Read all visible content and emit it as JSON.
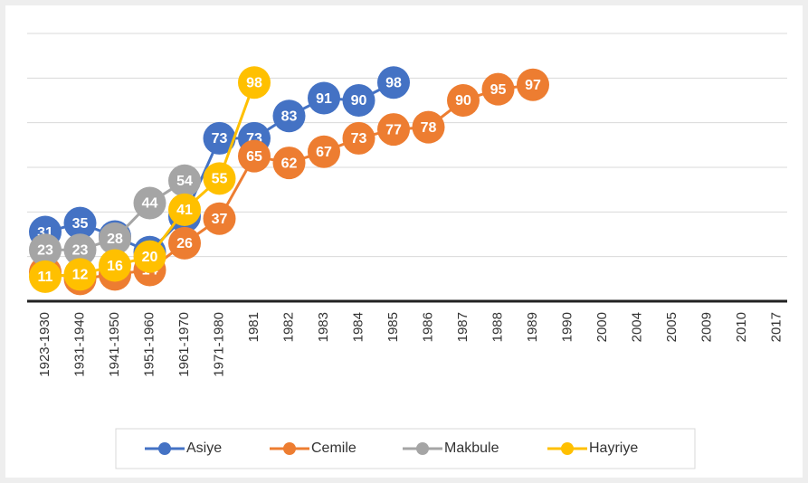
{
  "chart_data": {
    "type": "line",
    "categories": [
      "1923-1930",
      "1931-1940",
      "1941-1950",
      "1951-1960",
      "1961-1970",
      "1971-1980",
      "1981",
      "1982",
      "1983",
      "1984",
      "1985",
      "1986",
      "1987",
      "1988",
      "1989",
      "1990",
      "2000",
      "2004",
      "2005",
      "2009",
      "2010",
      "2017"
    ],
    "series": [
      {
        "name": "Asiye",
        "color": "#4472c4",
        "values": [
          31,
          35,
          29,
          22,
          38,
          73,
          73,
          83,
          91,
          90,
          98,
          null,
          null,
          null,
          null,
          null,
          null,
          null,
          null,
          null,
          null,
          null
        ]
      },
      {
        "name": "Cemile",
        "color": "#ed7d31",
        "values": [
          13,
          10,
          12,
          14,
          26,
          37,
          65,
          62,
          67,
          73,
          77,
          78,
          90,
          95,
          97,
          null,
          null,
          null,
          null,
          null,
          null,
          null
        ]
      },
      {
        "name": "Makbule",
        "color": "#a5a5a5",
        "values": [
          23,
          23,
          28,
          44,
          54,
          null,
          null,
          null,
          null,
          null,
          null,
          null,
          null,
          null,
          null,
          null,
          null,
          null,
          null,
          null,
          null,
          null
        ]
      },
      {
        "name": "Hayriye",
        "color": "#ffc000",
        "values": [
          11,
          12,
          16,
          20,
          41,
          55,
          98,
          null,
          null,
          null,
          null,
          null,
          null,
          null,
          null,
          null,
          null,
          null,
          null,
          null,
          null,
          null
        ]
      }
    ],
    "ylim": [
      0,
      120
    ],
    "yticks": [
      0,
      20,
      40,
      60,
      80,
      100,
      120
    ],
    "grid": true,
    "legend": "bottom"
  }
}
